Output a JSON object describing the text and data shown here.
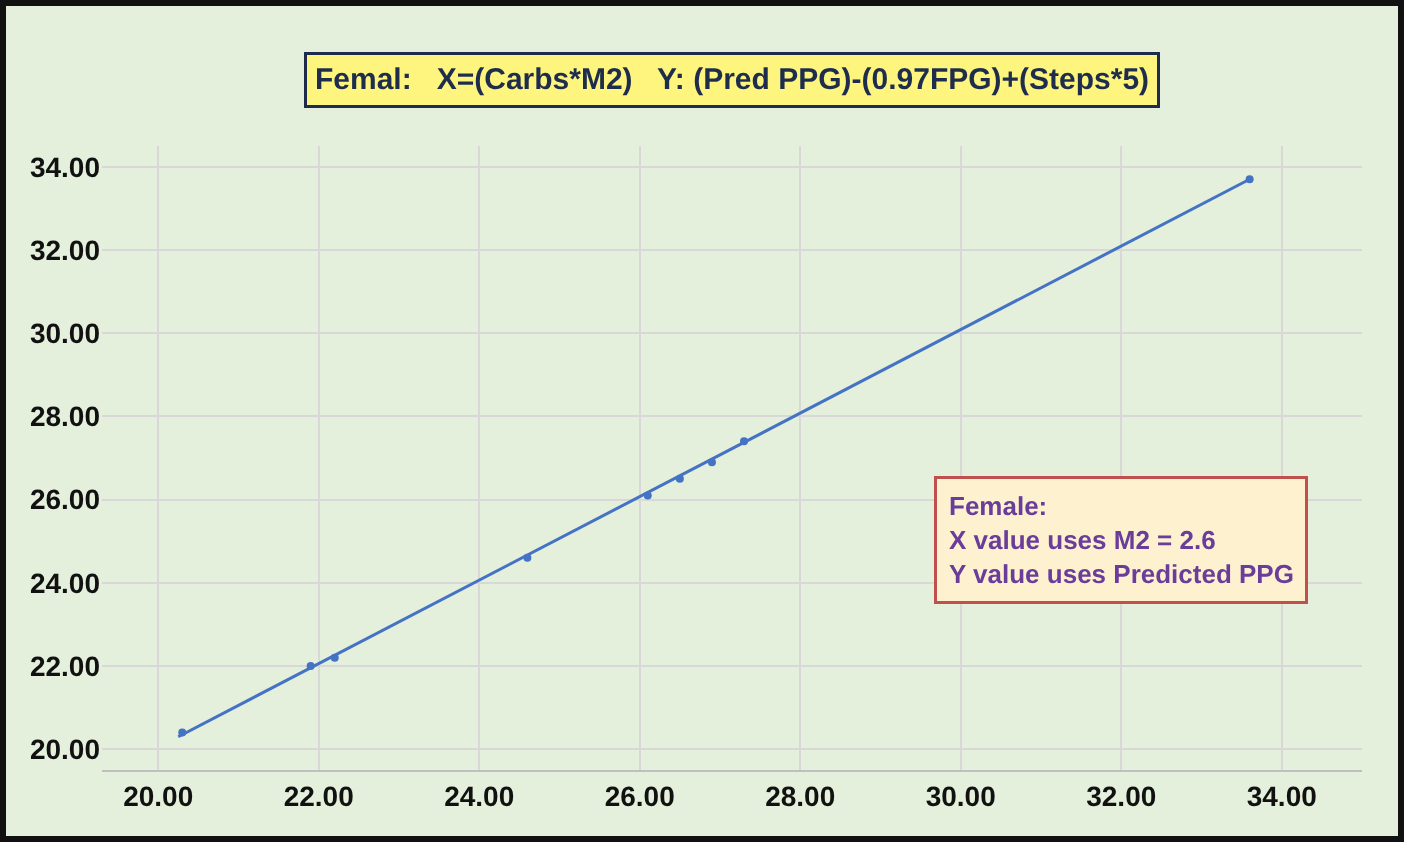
{
  "chart_data": {
    "type": "scatter",
    "title": "Femal:   X=(Carbs*M2)   Y: (Pred PPG)-(0.97FPG)+(Steps*5)",
    "series": [
      {
        "color": "#4472c4",
        "marker": "circle",
        "x": [
          20.3,
          21.9,
          22.2,
          24.6,
          26.1,
          26.5,
          26.9,
          27.3,
          33.6
        ],
        "values": [
          20.4,
          22.0,
          22.2,
          24.6,
          26.1,
          26.5,
          26.9,
          27.4,
          33.7
        ]
      },
      {
        "type": "line",
        "marker": "none",
        "color": "#4472c4",
        "x": [
          20.25,
          33.6
        ],
        "values": [
          20.3,
          33.7
        ]
      }
    ],
    "xlim": [
      19.3,
      35.0
    ],
    "xticks": [
      {
        "value": 20,
        "label": "20.00"
      },
      {
        "value": 22,
        "label": "22.00"
      },
      {
        "value": 24,
        "label": "24.00"
      },
      {
        "value": 26,
        "label": "26.00"
      },
      {
        "value": 28,
        "label": "28.00"
      },
      {
        "value": 30,
        "label": "30.00"
      },
      {
        "value": 32,
        "label": "32.00"
      },
      {
        "value": 34,
        "label": "34.00"
      }
    ],
    "ylim": [
      19.5,
      34.5
    ],
    "yticks": [
      {
        "value": 20,
        "label": "20.00"
      },
      {
        "value": 22,
        "label": "22.00"
      },
      {
        "value": 24,
        "label": "24.00"
      },
      {
        "value": 26,
        "label": "26.00"
      },
      {
        "value": 28,
        "label": "28.00"
      },
      {
        "value": 30,
        "label": "30.00"
      },
      {
        "value": 32,
        "label": "32.00"
      },
      {
        "value": 34,
        "label": "34.00"
      }
    ],
    "grid": true,
    "annotations": [
      "Female:\nX value uses M2 = 2.6\nY value uses Predicted PPG"
    ]
  }
}
